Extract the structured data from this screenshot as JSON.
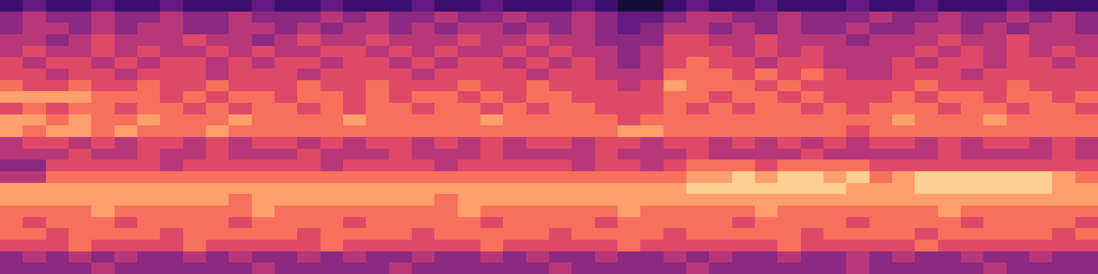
{
  "chart_data": {
    "type": "heatmap",
    "tick_labels": false,
    "zlim": [
      0,
      10
    ],
    "cells": [
      [
        2,
        3,
        2,
        2,
        3,
        2,
        2,
        3,
        2,
        2,
        2,
        3,
        2,
        2,
        3,
        2,
        2,
        2,
        3,
        2,
        2,
        3,
        2,
        2,
        2,
        3,
        2,
        1,
        1,
        2,
        3,
        2,
        2,
        3,
        2,
        2,
        2,
        3,
        2,
        2,
        3,
        2,
        2,
        2,
        3,
        2,
        2,
        2
      ],
      [
        4,
        5,
        4,
        4,
        5,
        4,
        4,
        5,
        4,
        4,
        5,
        4,
        4,
        4,
        5,
        4,
        5,
        4,
        4,
        5,
        4,
        4,
        5,
        4,
        4,
        5,
        4,
        3,
        3,
        4,
        5,
        5,
        4,
        4,
        5,
        4,
        4,
        4,
        5,
        4,
        4,
        5,
        4,
        4,
        5,
        4,
        5,
        4
      ],
      [
        4,
        5,
        5,
        4,
        5,
        4,
        5,
        5,
        4,
        4,
        5,
        5,
        4,
        5,
        4,
        5,
        5,
        4,
        5,
        4,
        5,
        5,
        4,
        5,
        4,
        5,
        4,
        3,
        4,
        5,
        5,
        4,
        5,
        4,
        5,
        4,
        4,
        5,
        4,
        4,
        5,
        5,
        4,
        5,
        4,
        5,
        5,
        4
      ],
      [
        5,
        5,
        4,
        5,
        6,
        5,
        5,
        5,
        6,
        5,
        5,
        4,
        5,
        6,
        5,
        5,
        6,
        5,
        5,
        5,
        6,
        5,
        5,
        6,
        5,
        5,
        4,
        4,
        4,
        6,
        6,
        5,
        5,
        6,
        5,
        5,
        5,
        4,
        5,
        5,
        5,
        6,
        5,
        5,
        6,
        5,
        5,
        5
      ],
      [
        5,
        6,
        5,
        5,
        6,
        5,
        6,
        5,
        5,
        6,
        5,
        6,
        5,
        5,
        6,
        6,
        5,
        6,
        5,
        6,
        5,
        5,
        6,
        5,
        6,
        5,
        5,
        4,
        5,
        6,
        6,
        6,
        5,
        6,
        5,
        6,
        5,
        5,
        5,
        5,
        6,
        5,
        6,
        5,
        6,
        5,
        6,
        5
      ],
      [
        6,
        5,
        6,
        6,
        5,
        6,
        5,
        6,
        6,
        5,
        6,
        5,
        6,
        6,
        5,
        6,
        6,
        5,
        6,
        5,
        6,
        6,
        5,
        6,
        5,
        6,
        5,
        4,
        5,
        6,
        7,
        6,
        6,
        5,
        6,
        6,
        5,
        5,
        5,
        6,
        5,
        6,
        6,
        5,
        6,
        6,
        5,
        6
      ],
      [
        6,
        6,
        5,
        6,
        6,
        5,
        6,
        6,
        6,
        5,
        6,
        6,
        6,
        5,
        6,
        6,
        6,
        6,
        5,
        6,
        6,
        6,
        6,
        5,
        6,
        6,
        5,
        5,
        5,
        7,
        7,
        7,
        6,
        7,
        6,
        7,
        6,
        5,
        5,
        6,
        6,
        6,
        5,
        6,
        6,
        6,
        6,
        6
      ],
      [
        7,
        6,
        6,
        7,
        6,
        6,
        7,
        6,
        6,
        7,
        6,
        6,
        6,
        7,
        6,
        6,
        7,
        6,
        6,
        6,
        7,
        6,
        6,
        7,
        6,
        6,
        6,
        5,
        6,
        8,
        7,
        7,
        7,
        6,
        7,
        6,
        6,
        6,
        6,
        6,
        7,
        6,
        6,
        6,
        7,
        6,
        6,
        6
      ],
      [
        8,
        8,
        8,
        8,
        7,
        7,
        7,
        6,
        7,
        6,
        7,
        7,
        6,
        7,
        7,
        6,
        7,
        6,
        7,
        7,
        6,
        7,
        6,
        7,
        7,
        6,
        6,
        6,
        6,
        7,
        7,
        6,
        7,
        7,
        6,
        7,
        6,
        6,
        6,
        7,
        6,
        7,
        7,
        6,
        7,
        7,
        6,
        7
      ],
      [
        6,
        7,
        6,
        7,
        7,
        6,
        7,
        7,
        6,
        7,
        6,
        7,
        7,
        6,
        7,
        6,
        7,
        7,
        6,
        7,
        7,
        6,
        7,
        6,
        7,
        7,
        6,
        6,
        6,
        7,
        6,
        7,
        6,
        7,
        7,
        6,
        7,
        6,
        7,
        7,
        7,
        6,
        7,
        7,
        6,
        7,
        7,
        6
      ],
      [
        8,
        8,
        7,
        8,
        7,
        7,
        8,
        7,
        7,
        7,
        8,
        7,
        7,
        7,
        7,
        8,
        7,
        7,
        7,
        7,
        7,
        8,
        7,
        7,
        7,
        7,
        7,
        6,
        7,
        7,
        7,
        7,
        7,
        7,
        7,
        7,
        7,
        7,
        7,
        8,
        7,
        7,
        7,
        8,
        7,
        7,
        7,
        7
      ],
      [
        8,
        7,
        8,
        8,
        7,
        8,
        7,
        7,
        7,
        8,
        7,
        7,
        7,
        7,
        7,
        7,
        7,
        7,
        7,
        7,
        7,
        7,
        7,
        7,
        7,
        7,
        7,
        8,
        8,
        7,
        7,
        7,
        7,
        7,
        7,
        7,
        7,
        6,
        7,
        7,
        7,
        7,
        7,
        7,
        7,
        7,
        7,
        7
      ],
      [
        5,
        6,
        6,
        5,
        6,
        5,
        6,
        6,
        5,
        6,
        5,
        6,
        6,
        5,
        6,
        5,
        6,
        6,
        5,
        6,
        5,
        6,
        5,
        6,
        6,
        5,
        6,
        6,
        5,
        6,
        6,
        5,
        6,
        5,
        6,
        5,
        6,
        5,
        6,
        6,
        5,
        6,
        5,
        6,
        6,
        5,
        6,
        5
      ],
      [
        5,
        5,
        5,
        6,
        5,
        5,
        6,
        5,
        5,
        6,
        5,
        5,
        5,
        6,
        5,
        5,
        5,
        6,
        5,
        5,
        5,
        6,
        5,
        5,
        5,
        5,
        6,
        5,
        5,
        5,
        6,
        5,
        5,
        5,
        5,
        6,
        5,
        5,
        5,
        5,
        5,
        6,
        5,
        5,
        5,
        5,
        6,
        5
      ],
      [
        4,
        4,
        6,
        6,
        6,
        6,
        6,
        5,
        6,
        6,
        6,
        6,
        6,
        6,
        5,
        6,
        6,
        6,
        6,
        5,
        6,
        6,
        6,
        6,
        6,
        5,
        6,
        6,
        5,
        6,
        7,
        7,
        7,
        6,
        7,
        7,
        7,
        7,
        6,
        6,
        6,
        6,
        6,
        6,
        6,
        6,
        6,
        6
      ],
      [
        5,
        5,
        7,
        7,
        7,
        7,
        7,
        7,
        7,
        7,
        7,
        7,
        7,
        7,
        7,
        7,
        7,
        7,
        7,
        7,
        7,
        7,
        7,
        7,
        7,
        7,
        7,
        7,
        7,
        7,
        8,
        8,
        9,
        8,
        9,
        9,
        8,
        9,
        7,
        8,
        9,
        9,
        9,
        9,
        9,
        9,
        8,
        7
      ],
      [
        8,
        8,
        8,
        8,
        8,
        8,
        8,
        8,
        8,
        8,
        8,
        8,
        8,
        8,
        8,
        8,
        8,
        8,
        8,
        8,
        8,
        8,
        8,
        8,
        8,
        8,
        8,
        8,
        8,
        8,
        9,
        9,
        9,
        9,
        9,
        9,
        9,
        8,
        8,
        8,
        9,
        9,
        9,
        9,
        9,
        9,
        8,
        8
      ],
      [
        8,
        8,
        8,
        8,
        8,
        8,
        8,
        8,
        8,
        8,
        7,
        8,
        8,
        8,
        8,
        8,
        8,
        8,
        8,
        7,
        8,
        8,
        8,
        8,
        8,
        8,
        8,
        8,
        8,
        8,
        8,
        8,
        8,
        8,
        8,
        8,
        8,
        8,
        8,
        8,
        8,
        8,
        8,
        8,
        8,
        8,
        8,
        8
      ],
      [
        7,
        7,
        7,
        7,
        8,
        7,
        7,
        7,
        7,
        7,
        7,
        8,
        7,
        7,
        7,
        7,
        7,
        7,
        7,
        7,
        8,
        7,
        7,
        7,
        7,
        7,
        7,
        8,
        7,
        7,
        7,
        7,
        7,
        8,
        7,
        7,
        7,
        7,
        7,
        7,
        7,
        8,
        7,
        7,
        7,
        7,
        7,
        7
      ],
      [
        7,
        6,
        7,
        7,
        7,
        6,
        7,
        7,
        7,
        7,
        6,
        7,
        7,
        7,
        7,
        6,
        7,
        7,
        7,
        7,
        7,
        6,
        7,
        7,
        7,
        7,
        6,
        7,
        7,
        7,
        7,
        7,
        6,
        7,
        7,
        7,
        7,
        6,
        7,
        7,
        7,
        7,
        6,
        7,
        7,
        7,
        7,
        6
      ],
      [
        7,
        7,
        6,
        7,
        7,
        7,
        7,
        6,
        7,
        7,
        7,
        7,
        7,
        6,
        7,
        7,
        7,
        7,
        6,
        7,
        7,
        7,
        7,
        7,
        6,
        7,
        7,
        7,
        7,
        6,
        7,
        7,
        7,
        7,
        7,
        6,
        7,
        7,
        7,
        7,
        6,
        7,
        7,
        7,
        7,
        7,
        6,
        7
      ],
      [
        6,
        6,
        6,
        7,
        6,
        6,
        6,
        6,
        7,
        6,
        6,
        6,
        6,
        6,
        7,
        6,
        6,
        6,
        6,
        6,
        6,
        7,
        6,
        6,
        6,
        6,
        6,
        7,
        6,
        6,
        6,
        6,
        6,
        6,
        7,
        6,
        6,
        6,
        6,
        6,
        7,
        6,
        6,
        6,
        6,
        6,
        6,
        6
      ],
      [
        4,
        5,
        4,
        5,
        4,
        5,
        4,
        4,
        5,
        4,
        5,
        4,
        4,
        5,
        4,
        5,
        4,
        4,
        5,
        4,
        4,
        5,
        4,
        5,
        4,
        4,
        5,
        4,
        4,
        5,
        4,
        5,
        4,
        4,
        5,
        4,
        4,
        5,
        4,
        5,
        4,
        4,
        5,
        4,
        4,
        5,
        4,
        4
      ],
      [
        4,
        4,
        4,
        4,
        5,
        4,
        4,
        4,
        4,
        4,
        4,
        5,
        4,
        4,
        4,
        4,
        4,
        5,
        4,
        4,
        4,
        4,
        4,
        4,
        5,
        4,
        4,
        4,
        4,
        4,
        5,
        4,
        4,
        4,
        4,
        4,
        4,
        5,
        4,
        4,
        4,
        4,
        4,
        5,
        4,
        4,
        4,
        4
      ]
    ]
  }
}
